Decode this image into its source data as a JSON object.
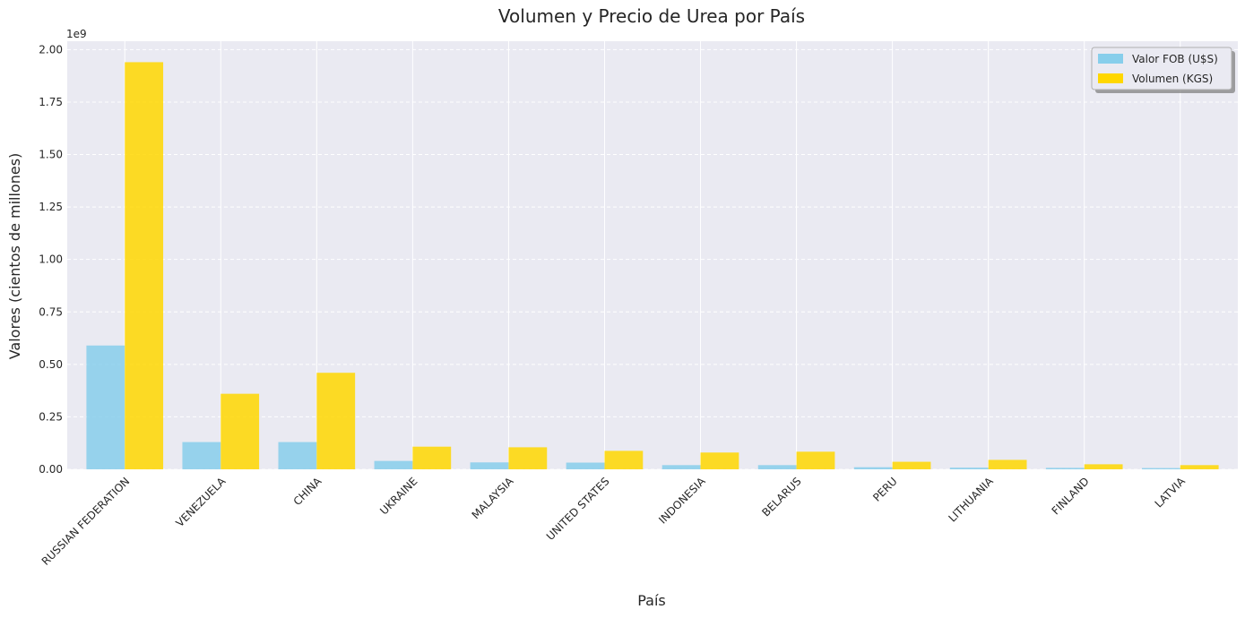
{
  "chart_data": {
    "type": "bar",
    "title": "Volumen y Precio de Urea por País",
    "xlabel": "País",
    "ylabel": "Valores (cientos de millones)",
    "offset_text": "1e9",
    "categories": [
      "RUSSIAN FEDERATION",
      "VENEZUELA",
      "CHINA",
      "UKRAINE",
      "MALAYSIA",
      "UNITED STATES",
      "INDONESIA",
      "BELARUS",
      "PERU",
      "LITHUANIA",
      "FINLAND",
      "LATVIA"
    ],
    "series": [
      {
        "name": "Valor FOB (U$S)",
        "color": "#87ceeb",
        "values": [
          590000000,
          130000000,
          130000000,
          40000000,
          33000000,
          32000000,
          20000000,
          20000000,
          10000000,
          8000000,
          7000000,
          6000000
        ]
      },
      {
        "name": "Volumen (KGS)",
        "color": "#ffd700",
        "values": [
          1940000000,
          360000000,
          460000000,
          108000000,
          105000000,
          88000000,
          80000000,
          84000000,
          36000000,
          45000000,
          24000000,
          20000000
        ]
      }
    ],
    "ylim": [
      0,
      2040000000
    ],
    "yticks": [
      0,
      250000000,
      500000000,
      750000000,
      1000000000,
      1250000000,
      1500000000,
      1750000000,
      2000000000
    ],
    "ytick_labels": [
      "0.00",
      "0.25",
      "0.50",
      "0.75",
      "1.00",
      "1.25",
      "1.50",
      "1.75",
      "2.00"
    ],
    "grid": true,
    "legend_position": "top-right",
    "colors": {
      "background": "#eaeaf2",
      "grid": "#ffffff"
    }
  }
}
